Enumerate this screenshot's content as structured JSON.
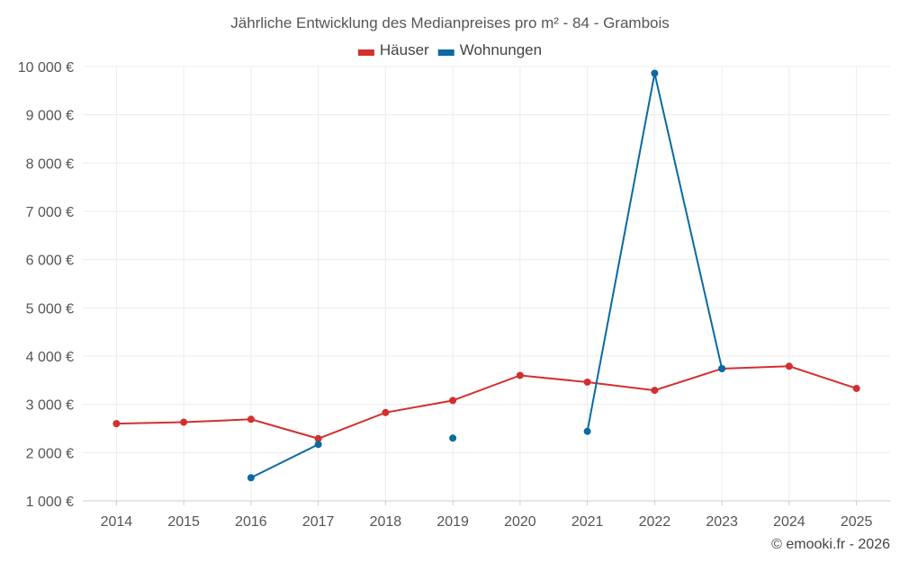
{
  "chart_data": {
    "type": "line",
    "title": "Jährliche Entwicklung des Medianpreises pro m² - 84 - Grambois",
    "categories": [
      "2014",
      "2015",
      "2016",
      "2017",
      "2018",
      "2019",
      "2020",
      "2021",
      "2022",
      "2023",
      "2024",
      "2025"
    ],
    "y_ticks": [
      "1 000 €",
      "2 000 €",
      "3 000 €",
      "4 000 €",
      "5 000 €",
      "6 000 €",
      "7 000 €",
      "8 000 €",
      "9 000 €",
      "10 000 €"
    ],
    "ylim": [
      1000,
      10000
    ],
    "grid": true,
    "legend_position": "top-center",
    "series": [
      {
        "name": "Häuser",
        "color": "#d32f2f",
        "values": [
          2600,
          2630,
          2690,
          2290,
          2830,
          3080,
          3600,
          3460,
          3290,
          3740,
          3790,
          3330
        ]
      },
      {
        "name": "Wohnungen",
        "color": "#0a6aa1",
        "values": [
          null,
          null,
          1480,
          2170,
          null,
          2300,
          null,
          2440,
          9860,
          3740,
          null,
          null
        ]
      }
    ],
    "credit": "© emooki.fr - 2026"
  }
}
